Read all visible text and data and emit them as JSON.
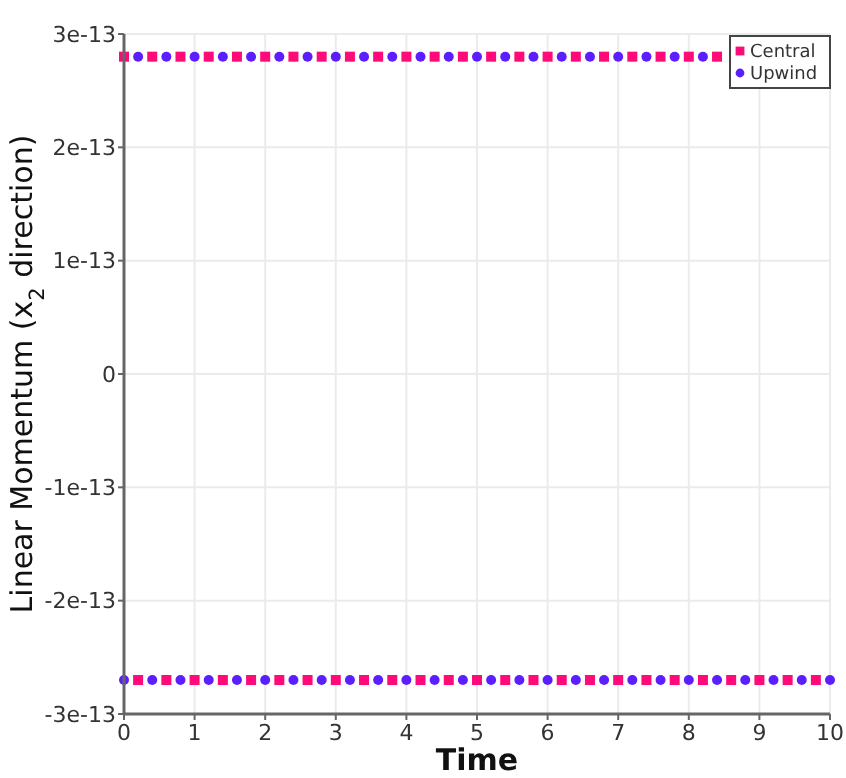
{
  "chart_data": {
    "type": "scatter",
    "xlabel": "Time",
    "ylabel": "Linear Momentum (x$_{2}$ direction)",
    "x": [
      0,
      0.2,
      0.4,
      0.6,
      0.8,
      1,
      1.2,
      1.4,
      1.6,
      1.8,
      2,
      2.2,
      2.4,
      2.6,
      2.8,
      3,
      3.2,
      3.4,
      3.6,
      3.8,
      4,
      4.2,
      4.4,
      4.6,
      4.8,
      5,
      5.2,
      5.4,
      5.6,
      5.8,
      6,
      6.2,
      6.4,
      6.6,
      6.8,
      7,
      7.2,
      7.4,
      7.6,
      7.8,
      8,
      8.2,
      8.4,
      8.6,
      8.8,
      9,
      9.2,
      9.4,
      9.6,
      9.8,
      10
    ],
    "series": [
      {
        "name": "Central",
        "color": "#ff0a78",
        "marker": "square",
        "values": [
          2.8e-13,
          -2.7e-13,
          2.8e-13,
          -2.7e-13,
          2.8e-13,
          -2.7e-13,
          2.8e-13,
          -2.7e-13,
          2.8e-13,
          -2.7e-13,
          2.8e-13,
          -2.7e-13,
          2.8e-13,
          -2.7e-13,
          2.8e-13,
          -2.7e-13,
          2.8e-13,
          -2.7e-13,
          2.8e-13,
          -2.7e-13,
          2.8e-13,
          -2.7e-13,
          2.8e-13,
          -2.7e-13,
          2.8e-13,
          -2.7e-13,
          2.8e-13,
          -2.7e-13,
          2.8e-13,
          -2.7e-13,
          2.8e-13,
          -2.7e-13,
          2.8e-13,
          -2.7e-13,
          2.8e-13,
          -2.7e-13,
          2.8e-13,
          -2.7e-13,
          2.8e-13,
          -2.7e-13,
          2.8e-13,
          -2.7e-13,
          2.8e-13,
          -2.7e-13,
          null,
          -2.7e-13,
          null,
          -2.7e-13,
          null,
          -2.7e-13,
          null
        ]
      },
      {
        "name": "Upwind",
        "color": "#5a1eff",
        "marker": "circle",
        "values": [
          -2.7e-13,
          2.8e-13,
          -2.7e-13,
          2.8e-13,
          -2.7e-13,
          2.8e-13,
          -2.7e-13,
          2.8e-13,
          -2.7e-13,
          2.8e-13,
          -2.7e-13,
          2.8e-13,
          -2.7e-13,
          2.8e-13,
          -2.7e-13,
          2.8e-13,
          -2.7e-13,
          2.8e-13,
          -2.7e-13,
          2.8e-13,
          -2.7e-13,
          2.8e-13,
          -2.7e-13,
          2.8e-13,
          -2.7e-13,
          2.8e-13,
          -2.7e-13,
          2.8e-13,
          -2.7e-13,
          2.8e-13,
          -2.7e-13,
          2.8e-13,
          -2.7e-13,
          2.8e-13,
          -2.7e-13,
          2.8e-13,
          -2.7e-13,
          2.8e-13,
          -2.7e-13,
          2.8e-13,
          -2.7e-13,
          2.8e-13,
          -2.7e-13,
          null,
          -2.7e-13,
          null,
          -2.7e-13,
          null,
          -2.7e-13,
          null,
          -2.7e-13
        ]
      }
    ],
    "xlim": [
      0,
      10
    ],
    "xticks": [
      0,
      1,
      2,
      3,
      4,
      5,
      6,
      7,
      8,
      9,
      10
    ],
    "ylim": [
      -3e-13,
      3e-13
    ],
    "yticks": [
      {
        "value": -3e-13,
        "label": "-3e-13"
      },
      {
        "value": -2e-13,
        "label": "-2e-13"
      },
      {
        "value": -1e-13,
        "label": "-1e-13"
      },
      {
        "value": 0,
        "label": "0"
      },
      {
        "value": 1e-13,
        "label": "1e-13"
      },
      {
        "value": 2e-13,
        "label": "2e-13"
      },
      {
        "value": 3e-13,
        "label": "3e-13"
      }
    ],
    "grid": true,
    "legend": "top right"
  }
}
